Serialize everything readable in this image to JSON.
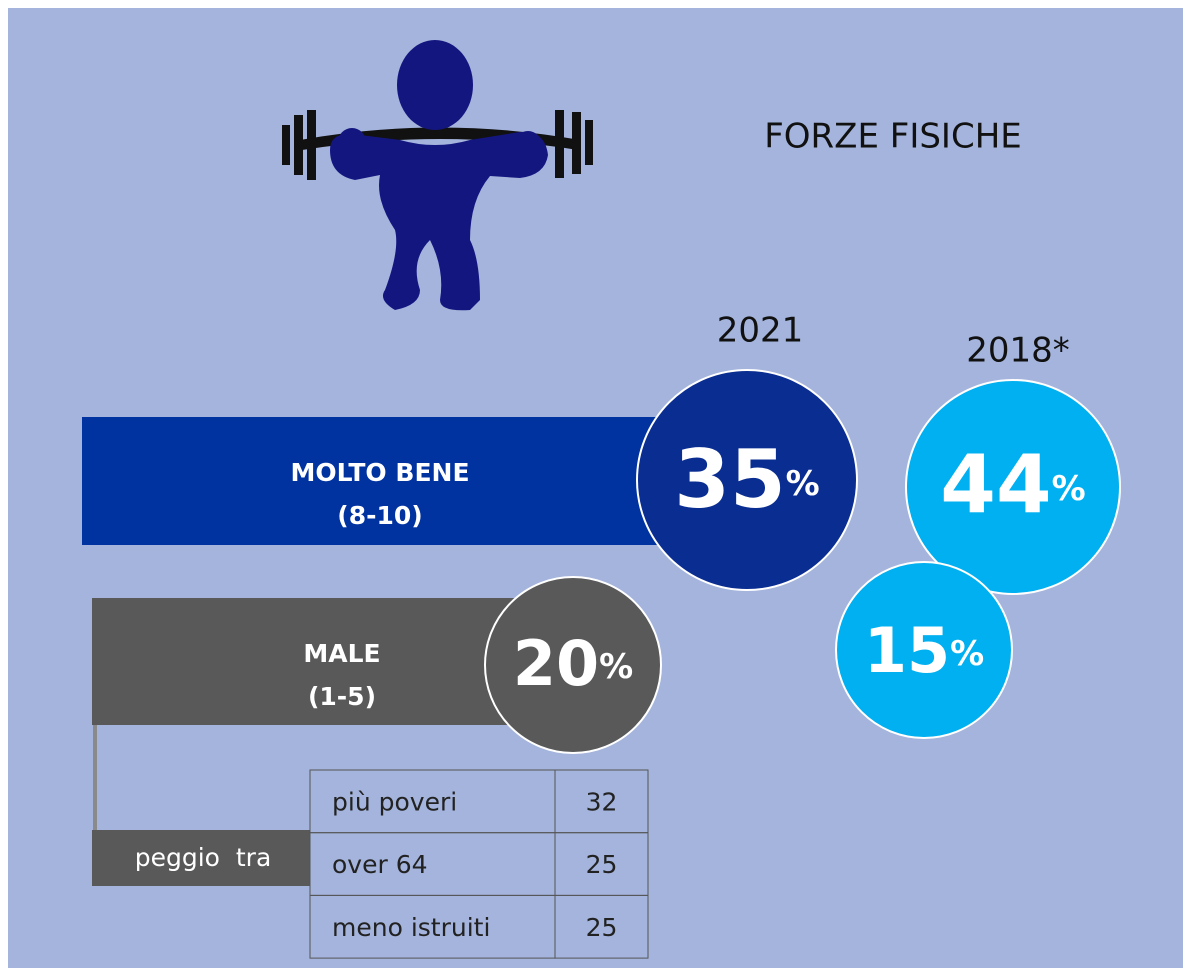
{
  "title": "FORZE FISICHE",
  "years": [
    "2021",
    "2018*"
  ],
  "unit": "%",
  "rows": [
    {
      "label": [
        "MOLTO BENE",
        "(8-10)"
      ],
      "values": [
        35,
        44
      ]
    },
    {
      "label": [
        "MALE",
        "(1-5)"
      ],
      "values": [
        20,
        15
      ]
    }
  ],
  "breakdown": {
    "label": "peggio  tra",
    "rows": [
      [
        "più poveri",
        32
      ],
      [
        "over 64",
        25
      ],
      [
        "meno istruiti",
        25
      ]
    ]
  }
}
